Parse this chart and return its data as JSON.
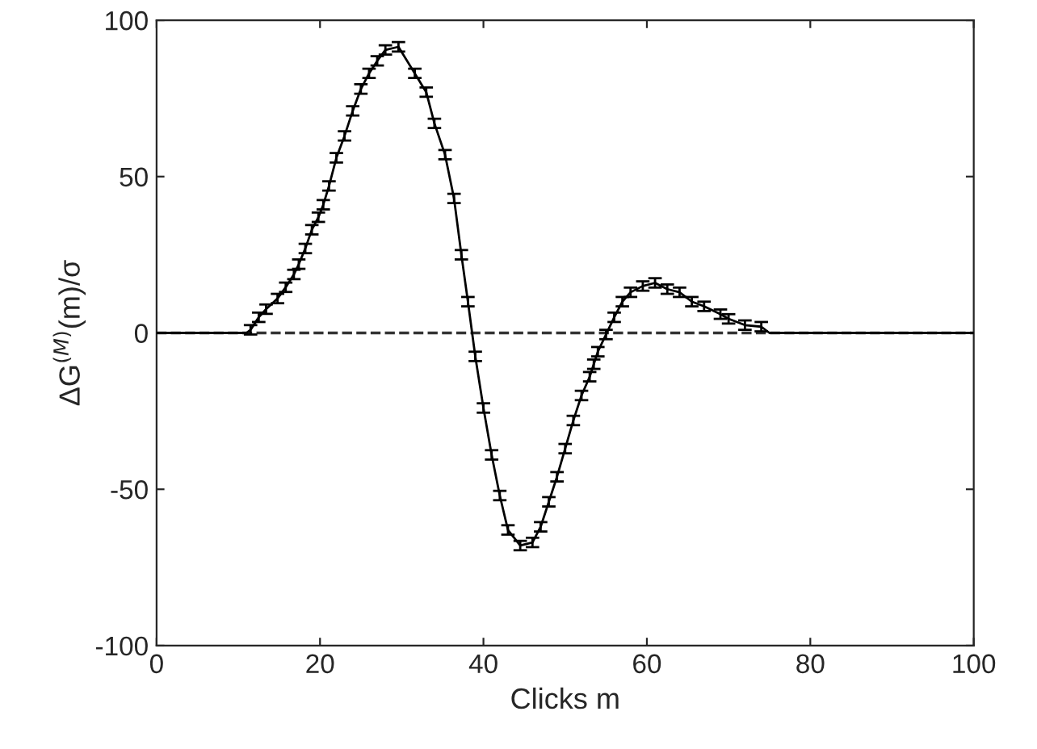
{
  "chart_data": {
    "type": "line",
    "xlabel": "Clicks m",
    "ylabel": "ΔG$^{(M)}$(m)/σ",
    "xlim": [
      0,
      100
    ],
    "ylim": [
      -100,
      100
    ],
    "xticks": [
      0,
      20,
      40,
      60,
      80,
      100
    ],
    "yticks": [
      -100,
      -50,
      0,
      50,
      100
    ],
    "grid": false,
    "legend": false,
    "marker": "none",
    "line_style": "solid",
    "ref_lines": [
      {
        "axis": "y",
        "value": 0,
        "color": "#333333",
        "line_style": "dashed"
      }
    ],
    "series": [
      {
        "color": "#000000",
        "x": [
          0,
          11,
          11.5,
          12.5,
          13.4,
          14.8,
          15.8,
          16.8,
          17.4,
          18.2,
          19,
          19.8,
          20.4,
          21.1,
          22,
          23,
          24,
          25,
          26,
          27,
          28,
          29.6,
          31.6,
          33,
          34,
          35.3,
          36.4,
          37.3,
          38.1,
          39,
          40,
          41,
          42,
          43,
          44.5,
          46,
          47,
          48,
          49,
          50,
          51,
          52,
          53,
          53.5,
          54,
          55,
          56,
          57,
          58,
          59.5,
          61,
          62.5,
          64,
          65.5,
          67,
          69,
          70,
          72,
          74,
          75,
          100
        ],
        "values": [
          0,
          0,
          1,
          5,
          7.6,
          11,
          14.6,
          18.7,
          22,
          27,
          33,
          37,
          41,
          47,
          56,
          63,
          71,
          78,
          83,
          87,
          90.5,
          91.5,
          83,
          77,
          67,
          57,
          43,
          25,
          10,
          -7.5,
          -24,
          -39,
          -52,
          -63,
          -68,
          -67,
          -62,
          -54,
          -46,
          -37,
          -28,
          -20,
          -14,
          -10,
          -6,
          -0.5,
          5,
          10,
          13,
          15,
          16,
          14,
          13,
          10,
          8.5,
          6,
          4.5,
          2.5,
          2,
          0,
          0
        ],
        "errors": [
          null,
          null,
          1.5,
          1.5,
          1.5,
          1.5,
          1.5,
          1.5,
          1.5,
          1.5,
          1.5,
          1.5,
          1.5,
          1.5,
          1.5,
          1.5,
          1.5,
          1.5,
          1.5,
          1.5,
          1.5,
          1.5,
          1.5,
          1.5,
          1.5,
          1.5,
          1.5,
          1.5,
          1.5,
          1.5,
          1.5,
          1.5,
          1.5,
          1.5,
          1.5,
          1.5,
          1.5,
          1.5,
          1.5,
          1.5,
          1.5,
          1.5,
          1.5,
          1.5,
          1.5,
          1.5,
          1.5,
          1.5,
          1.5,
          1.5,
          1.5,
          1.5,
          1.5,
          1.5,
          1.5,
          1.5,
          1.5,
          1.5,
          1.5,
          null,
          null
        ]
      }
    ]
  }
}
